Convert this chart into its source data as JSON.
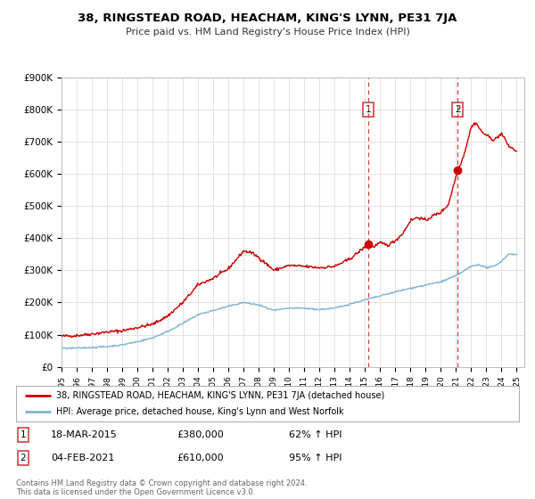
{
  "title": "38, RINGSTEAD ROAD, HEACHAM, KING'S LYNN, PE31 7JA",
  "subtitle": "Price paid vs. HM Land Registry's House Price Index (HPI)",
  "legend_line1": "38, RINGSTEAD ROAD, HEACHAM, KING'S LYNN, PE31 7JA (detached house)",
  "legend_line2": "HPI: Average price, detached house, King's Lynn and West Norfolk",
  "sale1_date": "18-MAR-2015",
  "sale1_price": "£380,000",
  "sale1_hpi": "62% ↑ HPI",
  "sale1_year": 2015.2,
  "sale1_value": 380000,
  "sale2_date": "04-FEB-2021",
  "sale2_price": "£610,000",
  "sale2_hpi": "95% ↑ HPI",
  "sale2_year": 2021.1,
  "sale2_value": 610000,
  "red_color": "#cc0000",
  "blue_color": "#7fb3d3",
  "dashed_color": "#cc4444",
  "grid_color": "#dddddd",
  "background_color": "#ffffff",
  "plot_bg_color": "#ffffff",
  "xlim": [
    1995.0,
    2025.5
  ],
  "ylim": [
    0,
    900000
  ],
  "yticks": [
    0,
    100000,
    200000,
    300000,
    400000,
    500000,
    600000,
    700000,
    800000,
    900000
  ],
  "ytick_labels": [
    "£0",
    "£100K",
    "£200K",
    "£300K",
    "£400K",
    "£500K",
    "£600K",
    "£700K",
    "£800K",
    "£900K"
  ],
  "footer": "Contains HM Land Registry data © Crown copyright and database right 2024.\nThis data is licensed under the Open Government Licence v3.0.",
  "xticks": [
    1995,
    1996,
    1997,
    1998,
    1999,
    2000,
    2001,
    2002,
    2003,
    2004,
    2005,
    2006,
    2007,
    2008,
    2009,
    2010,
    2011,
    2012,
    2013,
    2014,
    2015,
    2016,
    2017,
    2018,
    2019,
    2020,
    2021,
    2022,
    2023,
    2024,
    2025
  ]
}
